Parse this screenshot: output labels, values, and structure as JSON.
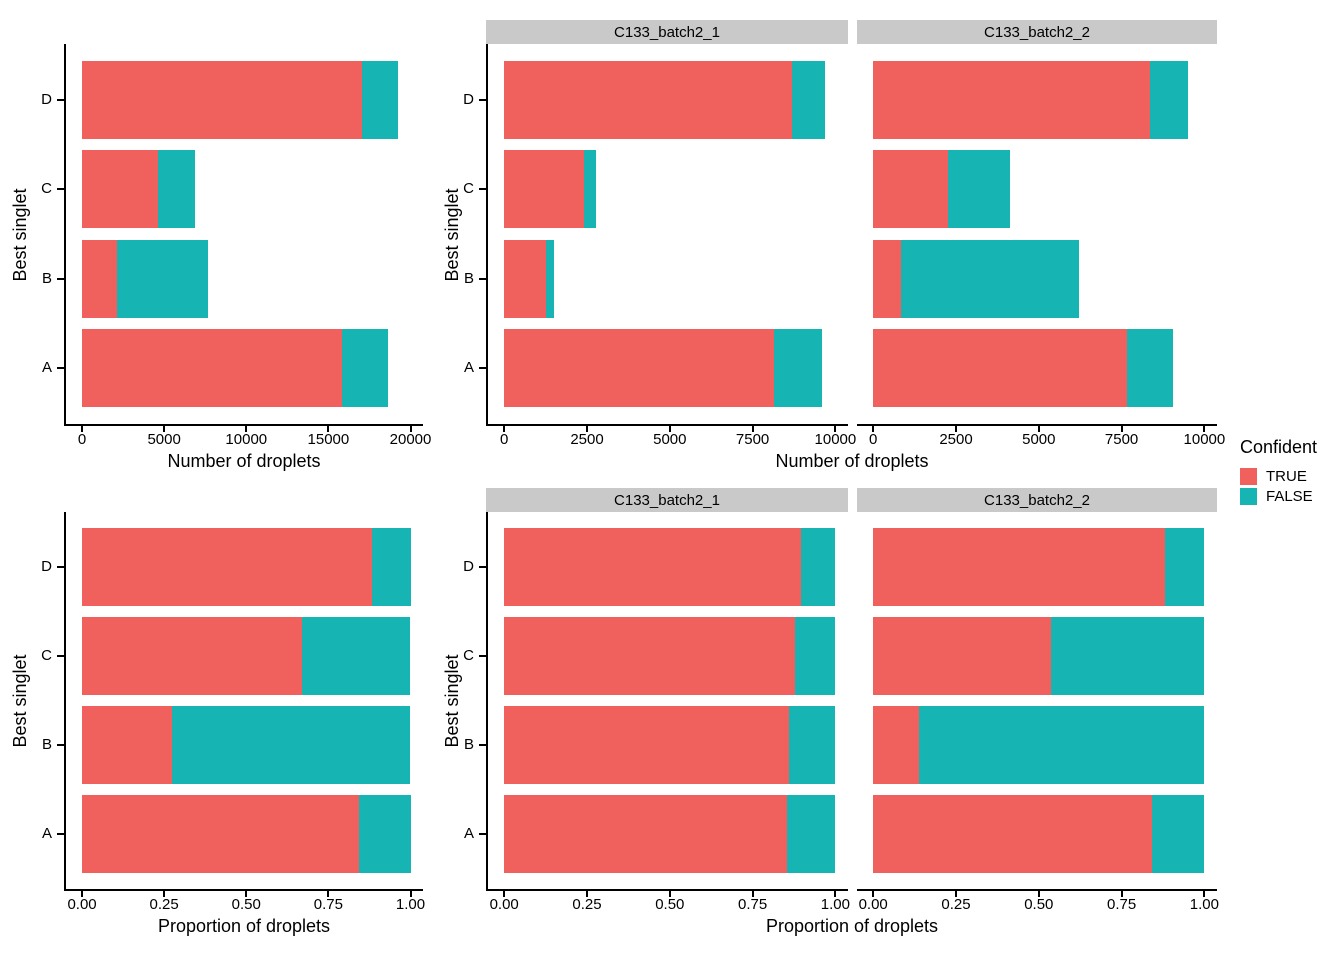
{
  "colors": {
    "TRUE": "#F0605C",
    "FALSE": "#17B4B4",
    "strip_bg": "#C9C9C9",
    "axis": "#000000"
  },
  "legend": {
    "title": "Confident",
    "items": [
      {
        "label": "TRUE",
        "color_key": "TRUE"
      },
      {
        "label": "FALSE",
        "color_key": "FALSE"
      }
    ]
  },
  "chart_data": [
    {
      "id": "counts-all",
      "type": "bar",
      "orientation": "horizontal",
      "stacked": true,
      "facet": null,
      "title": "",
      "categories": [
        "A",
        "B",
        "C",
        "D"
      ],
      "series": [
        {
          "name": "TRUE",
          "values": [
            15800,
            2100,
            4650,
            17050
          ]
        },
        {
          "name": "FALSE",
          "values": [
            2850,
            5550,
            2250,
            2200
          ]
        }
      ],
      "xlabel": "Number of droplets",
      "ylabel": "Best singlet",
      "xlim": [
        0,
        20000
      ],
      "xticks": [
        0,
        5000,
        10000,
        15000,
        20000
      ],
      "xtick_labels": [
        "0",
        "5000",
        "10000",
        "15000",
        "20000"
      ],
      "grid": false,
      "legend_position": "right"
    },
    {
      "id": "counts-batch1",
      "type": "bar",
      "orientation": "horizontal",
      "stacked": true,
      "facet": "C133_batch2_1",
      "title": "",
      "categories": [
        "A",
        "B",
        "C",
        "D"
      ],
      "series": [
        {
          "name": "TRUE",
          "values": [
            8150,
            1270,
            2400,
            8700
          ]
        },
        {
          "name": "FALSE",
          "values": [
            1450,
            230,
            380,
            1000
          ]
        }
      ],
      "xlabel": "Number of droplets",
      "ylabel": "Best singlet",
      "xlim": [
        0,
        10000
      ],
      "xticks": [
        0,
        2500,
        5000,
        7500,
        10000
      ],
      "xtick_labels": [
        "0",
        "2500",
        "5000",
        "7500",
        "10000"
      ],
      "grid": false,
      "legend_position": "right"
    },
    {
      "id": "counts-batch2",
      "type": "bar",
      "orientation": "horizontal",
      "stacked": true,
      "facet": "C133_batch2_2",
      "title": "",
      "categories": [
        "A",
        "B",
        "C",
        "D"
      ],
      "series": [
        {
          "name": "TRUE",
          "values": [
            7650,
            850,
            2250,
            8350
          ]
        },
        {
          "name": "FALSE",
          "values": [
            1400,
            5350,
            1870,
            1150
          ]
        }
      ],
      "xlabel": "Number of droplets",
      "ylabel": "Best singlet",
      "xlim": [
        0,
        10000
      ],
      "xticks": [
        0,
        2500,
        5000,
        7500,
        10000
      ],
      "xtick_labels": [
        "0",
        "2500",
        "5000",
        "7500",
        "10000"
      ],
      "grid": false,
      "legend_position": "right"
    },
    {
      "id": "prop-all",
      "type": "bar",
      "orientation": "horizontal",
      "stacked": true,
      "facet": null,
      "title": "",
      "categories": [
        "A",
        "B",
        "C",
        "D"
      ],
      "series": [
        {
          "name": "TRUE",
          "values": [
            0.843,
            0.275,
            0.671,
            0.882
          ]
        },
        {
          "name": "FALSE",
          "values": [
            0.157,
            0.725,
            0.329,
            0.118
          ]
        }
      ],
      "xlabel": "Proportion of droplets",
      "ylabel": "Best singlet",
      "xlim": [
        0,
        1
      ],
      "xticks": [
        0,
        0.25,
        0.5,
        0.75,
        1
      ],
      "xtick_labels": [
        "0.00",
        "0.25",
        "0.50",
        "0.75",
        "1.00"
      ],
      "grid": false,
      "legend_position": "right"
    },
    {
      "id": "prop-batch1",
      "type": "bar",
      "orientation": "horizontal",
      "stacked": true,
      "facet": "C133_batch2_1",
      "title": "",
      "categories": [
        "A",
        "B",
        "C",
        "D"
      ],
      "series": [
        {
          "name": "TRUE",
          "values": [
            0.853,
            0.861,
            0.878,
            0.897
          ]
        },
        {
          "name": "FALSE",
          "values": [
            0.147,
            0.139,
            0.122,
            0.103
          ]
        }
      ],
      "xlabel": "Proportion of droplets",
      "ylabel": "Best singlet",
      "xlim": [
        0,
        1
      ],
      "xticks": [
        0,
        0.25,
        0.5,
        0.75,
        1
      ],
      "xtick_labels": [
        "0.00",
        "0.25",
        "0.50",
        "0.75",
        "1.00"
      ],
      "grid": false,
      "legend_position": "right"
    },
    {
      "id": "prop-batch2",
      "type": "bar",
      "orientation": "horizontal",
      "stacked": true,
      "facet": "C133_batch2_2",
      "title": "",
      "categories": [
        "A",
        "B",
        "C",
        "D"
      ],
      "series": [
        {
          "name": "TRUE",
          "values": [
            0.843,
            0.137,
            0.538,
            0.882
          ]
        },
        {
          "name": "FALSE",
          "values": [
            0.157,
            0.863,
            0.462,
            0.118
          ]
        }
      ],
      "xlabel": "Proportion of droplets",
      "ylabel": "Best singlet",
      "xlim": [
        0,
        1
      ],
      "xticks": [
        0,
        0.25,
        0.5,
        0.75,
        1
      ],
      "xtick_labels": [
        "0.00",
        "0.25",
        "0.50",
        "0.75",
        "1.00"
      ],
      "grid": false,
      "legend_position": "right"
    }
  ]
}
